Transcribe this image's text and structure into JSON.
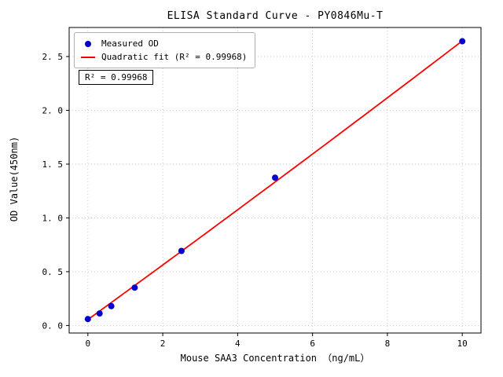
{
  "chart_data": {
    "type": "scatter",
    "title": "ELISA Standard Curve - PY0846Mu-T",
    "xlabel": "Mouse SAA3 Concentration （ng/mL）",
    "ylabel": "OD Value(450nm)",
    "xlim": [
      -0.5,
      10.5
    ],
    "ylim": [
      -0.07,
      2.77
    ],
    "grid": true,
    "xticks": [
      0,
      2,
      4,
      6,
      8,
      10
    ],
    "xtick_labels": [
      "0",
      "2",
      "4",
      "6",
      "8",
      "10"
    ],
    "yticks": [
      0,
      0.5,
      1.0,
      1.5,
      2.0,
      2.5
    ],
    "ytick_labels": [
      "0. 0",
      "0. 5",
      "1. 0",
      "1. 5",
      "2. 0",
      "2. 5"
    ],
    "series": [
      {
        "name": "Measured OD",
        "type": "scatter",
        "color": "#0000cd",
        "x": [
          0,
          0.313,
          0.625,
          1.25,
          2.5,
          5,
          10
        ],
        "y": [
          0.06,
          0.112,
          0.18,
          0.352,
          0.693,
          1.374,
          2.642
        ]
      },
      {
        "name": "Quadratic fit (R² = 0.99968)",
        "type": "line",
        "color": "#ff0000",
        "fit": {
          "kind": "quadratic",
          "coefficients": [
            0.055,
            0.2525,
            0.00065
          ],
          "x_range": [
            0,
            10
          ]
        }
      }
    ],
    "legend": {
      "position": "upper-left",
      "entries": [
        {
          "label": "Measured OD",
          "marker": "dot",
          "color": "#0000cd"
        },
        {
          "label": "Quadratic fit (R² = 0.99968)",
          "marker": "line",
          "color": "#ff0000"
        }
      ]
    },
    "annotation": "R² = 0.99968",
    "r_squared": 0.99968,
    "colors": {
      "point": "#0000cd",
      "fit_line": "#ff0000",
      "grid": "#bbbbbb",
      "axis": "#000000"
    }
  }
}
